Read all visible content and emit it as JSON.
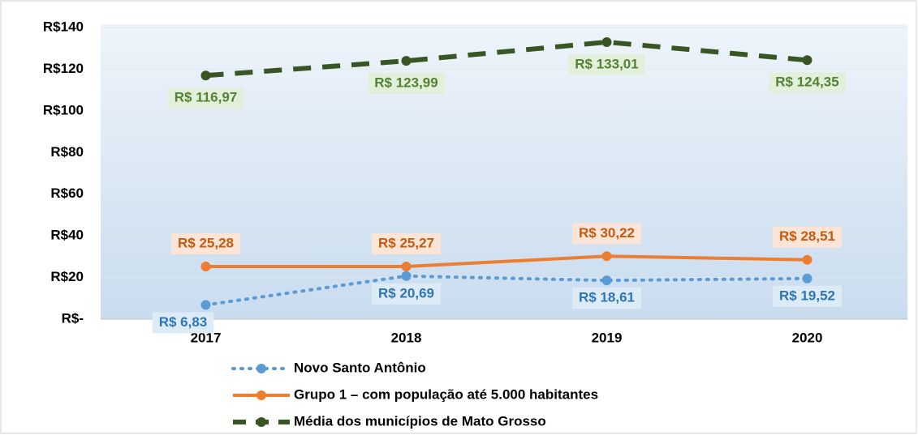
{
  "chart_data": {
    "type": "line",
    "categories": [
      "2017",
      "2018",
      "2019",
      "2020"
    ],
    "series": [
      {
        "name": "Novo Santo Antônio",
        "color": "#5b9bd5",
        "style": "dotted",
        "values": [
          6.83,
          20.69,
          18.61,
          19.52
        ],
        "value_labels": [
          "R$ 6,83",
          "R$ 20,69",
          "R$ 18,61",
          "R$ 19,52"
        ]
      },
      {
        "name": "Grupo 1 – com população até 5.000 habitantes",
        "color": "#ed7d31",
        "style": "solid",
        "values": [
          25.28,
          25.27,
          30.22,
          28.51
        ],
        "value_labels": [
          "R$ 25,28",
          "R$ 25,27",
          "R$ 30,22",
          "R$ 28,51"
        ]
      },
      {
        "name": "Média dos municípios de Mato Grosso",
        "color": "#375623",
        "style": "dashed",
        "values": [
          116.97,
          123.99,
          133.01,
          124.35
        ],
        "value_labels": [
          "R$ 116,97",
          "R$ 123,99",
          "R$ 133,01",
          "R$ 124,35"
        ]
      }
    ],
    "ylim": [
      0,
      140
    ],
    "yticks": [
      {
        "value": 0,
        "label": "R$-"
      },
      {
        "value": 20,
        "label": "R$20"
      },
      {
        "value": 40,
        "label": "R$40"
      },
      {
        "value": 60,
        "label": "R$60"
      },
      {
        "value": 80,
        "label": "R$80"
      },
      {
        "value": 100,
        "label": "R$100"
      },
      {
        "value": 120,
        "label": "R$120"
      },
      {
        "value": 140,
        "label": "R$140"
      }
    ],
    "grid": true,
    "legend": "bottom"
  }
}
